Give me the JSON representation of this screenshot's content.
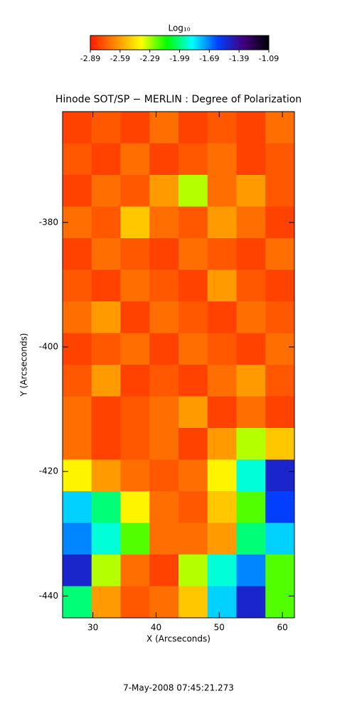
{
  "chart_data": {
    "type": "heatmap",
    "title": "Hinode SOT/SP − MERLIN : Degree of Polarization",
    "x_label": "X (Arcseconds)",
    "y_label": "Y (Arcseconds)",
    "colorbar_label": "Log₁₀",
    "date": "7-May-2008 07:45:21.273",
    "xlim": [
      25.2,
      61.9
    ],
    "xticks": [
      30,
      40,
      50,
      60
    ],
    "ylim": [
      -443.5,
      -362.2
    ],
    "yticks": [
      -380,
      -400,
      -420,
      -440
    ],
    "clim": [
      -2.89,
      -1.09
    ],
    "cticks": [
      -2.89,
      -2.59,
      -2.29,
      -1.99,
      -1.69,
      -1.39,
      -1.09
    ],
    "colormap": [
      "#ff1a00",
      "#ff8c00",
      "#ffff00",
      "#00ff00",
      "#00ffff",
      "#0040ff",
      "#40007f",
      "#000000"
    ],
    "z": [
      [
        -2.8,
        -2.75,
        -2.8,
        -2.7,
        -2.8,
        -2.75,
        -2.8,
        -2.7
      ],
      [
        -2.75,
        -2.8,
        -2.7,
        -2.8,
        -2.75,
        -2.7,
        -2.8,
        -2.75
      ],
      [
        -2.8,
        -2.7,
        -2.75,
        -2.6,
        -2.3,
        -2.7,
        -2.6,
        -2.75
      ],
      [
        -2.7,
        -2.75,
        -2.5,
        -2.7,
        -2.75,
        -2.6,
        -2.7,
        -2.8
      ],
      [
        -2.8,
        -2.7,
        -2.75,
        -2.8,
        -2.7,
        -2.75,
        -2.8,
        -2.7
      ],
      [
        -2.75,
        -2.8,
        -2.7,
        -2.75,
        -2.8,
        -2.6,
        -2.75,
        -2.8
      ],
      [
        -2.7,
        -2.6,
        -2.8,
        -2.7,
        -2.75,
        -2.8,
        -2.7,
        -2.75
      ],
      [
        -2.8,
        -2.75,
        -2.7,
        -2.8,
        -2.7,
        -2.75,
        -2.8,
        -2.7
      ],
      [
        -2.75,
        -2.6,
        -2.8,
        -2.75,
        -2.8,
        -2.7,
        -2.6,
        -2.75
      ],
      [
        -2.7,
        -2.8,
        -2.75,
        -2.7,
        -2.6,
        -2.8,
        -2.7,
        -2.8
      ],
      [
        -2.7,
        -2.8,
        -2.75,
        -2.7,
        -2.8,
        -2.6,
        -2.3,
        -2.5
      ],
      [
        -2.4,
        -2.6,
        -2.7,
        -2.75,
        -2.7,
        -2.4,
        -1.9,
        -1.5
      ],
      [
        -1.8,
        -2.0,
        -2.4,
        -2.7,
        -2.75,
        -2.5,
        -2.2,
        -1.6
      ],
      [
        -1.7,
        -1.9,
        -2.2,
        -2.7,
        -2.7,
        -2.6,
        -2.0,
        -1.8
      ],
      [
        -1.5,
        -2.3,
        -2.7,
        -2.8,
        -2.3,
        -1.9,
        -1.7,
        -2.2
      ],
      [
        -2.0,
        -2.6,
        -2.75,
        -2.7,
        -2.5,
        -1.8,
        -1.5,
        -2.2
      ]
    ]
  }
}
